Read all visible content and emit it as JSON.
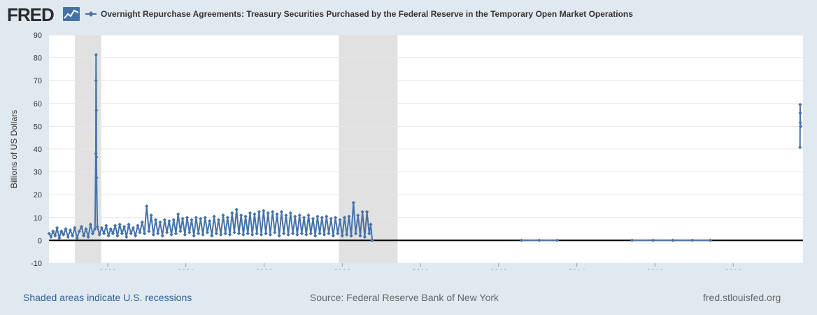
{
  "header": {
    "logo_text": "FRED",
    "logo_icon": "line-graph-icon",
    "legend_marker": "line-with-diamond-icon"
  },
  "footer": {
    "recessions_note": "Shaded areas indicate U.S. recessions",
    "source": "Source: Federal Reserve Bank of New York",
    "site": "fred.stlouisfed.org"
  },
  "colors": {
    "series": "#4572a7",
    "recession": "#e1e1e1",
    "grid": "#e6e6e6",
    "zero_line": "#000000",
    "background": "#e1e9f0",
    "plot_background": "#ffffff"
  },
  "chart_data": {
    "type": "line",
    "title": "Overnight Repurchase Agreements: Treasury Securities Purchased by the Federal Reserve in the Temporary Open Market Operations",
    "xlabel": "",
    "ylabel": "Billions of US Dollars",
    "x_axis_type": "date",
    "xlim": [
      "2000-07-01",
      "2019-10-15"
    ],
    "ylim": [
      -10,
      90
    ],
    "xticks": [
      "2002",
      "2004",
      "2006",
      "2008",
      "2010",
      "2012",
      "2014",
      "2016",
      "2018"
    ],
    "yticks": [
      -10,
      0,
      10,
      20,
      30,
      40,
      50,
      60,
      70,
      80,
      90
    ],
    "grid": true,
    "legend_position": "top",
    "recessions": [
      {
        "start": "2001-03-01",
        "end": "2001-11-01"
      },
      {
        "start": "2007-12-01",
        "end": "2009-06-01"
      }
    ],
    "series": [
      {
        "name": "",
        "points": [
          [
            "2000-07-03",
            3.0
          ],
          [
            "2000-07-20",
            1.5
          ],
          [
            "2000-08-08",
            4.0
          ],
          [
            "2000-08-28",
            2.0
          ],
          [
            "2000-09-15",
            5.5
          ],
          [
            "2000-10-05",
            1.0
          ],
          [
            "2000-10-25",
            4.0
          ],
          [
            "2000-11-14",
            2.5
          ],
          [
            "2000-12-05",
            5.0
          ],
          [
            "2000-12-26",
            1.5
          ],
          [
            "2001-01-16",
            4.5
          ],
          [
            "2001-02-06",
            2.0
          ],
          [
            "2001-02-27",
            5.5
          ],
          [
            "2001-03-20",
            1.0
          ],
          [
            "2001-04-10",
            4.0
          ],
          [
            "2001-05-01",
            6.0
          ],
          [
            "2001-05-22",
            2.0
          ],
          [
            "2001-06-12",
            5.0
          ],
          [
            "2001-07-03",
            1.5
          ],
          [
            "2001-07-24",
            7.0
          ],
          [
            "2001-08-14",
            3.0
          ],
          [
            "2001-09-04",
            5.0
          ],
          [
            "2001-09-12",
            38.0
          ],
          [
            "2001-09-13",
            70.0
          ],
          [
            "2001-09-14",
            81.3
          ],
          [
            "2001-09-17",
            57.0
          ],
          [
            "2001-09-18",
            36.5
          ],
          [
            "2001-09-19",
            27.5
          ],
          [
            "2001-09-26",
            6.0
          ],
          [
            "2001-10-16",
            2.5
          ],
          [
            "2001-11-06",
            5.5
          ],
          [
            "2001-11-27",
            3.0
          ],
          [
            "2001-12-18",
            6.5
          ],
          [
            "2002-01-08",
            2.0
          ],
          [
            "2002-01-29",
            5.0
          ],
          [
            "2002-02-19",
            3.0
          ],
          [
            "2002-03-12",
            6.5
          ],
          [
            "2002-04-02",
            2.0
          ],
          [
            "2002-04-23",
            7.0
          ],
          [
            "2002-05-14",
            3.0
          ],
          [
            "2002-06-04",
            6.0
          ],
          [
            "2002-06-25",
            1.5
          ],
          [
            "2002-07-16",
            7.0
          ],
          [
            "2002-08-06",
            3.0
          ],
          [
            "2002-08-27",
            5.5
          ],
          [
            "2002-09-17",
            2.0
          ],
          [
            "2002-10-08",
            6.5
          ],
          [
            "2002-10-29",
            3.5
          ],
          [
            "2002-11-19",
            8.0
          ],
          [
            "2002-12-10",
            3.0
          ],
          [
            "2002-12-31",
            15.0
          ],
          [
            "2003-01-21",
            4.0
          ],
          [
            "2003-02-11",
            11.0
          ],
          [
            "2003-03-04",
            2.5
          ],
          [
            "2003-03-25",
            9.0
          ],
          [
            "2003-04-15",
            3.0
          ],
          [
            "2003-05-06",
            8.0
          ],
          [
            "2003-05-27",
            2.0
          ],
          [
            "2003-06-17",
            9.0
          ],
          [
            "2003-07-08",
            3.5
          ],
          [
            "2003-07-29",
            8.5
          ],
          [
            "2003-08-19",
            2.5
          ],
          [
            "2003-09-09",
            9.0
          ],
          [
            "2003-09-30",
            3.0
          ],
          [
            "2003-10-21",
            11.5
          ],
          [
            "2003-11-11",
            4.0
          ],
          [
            "2003-12-02",
            9.5
          ],
          [
            "2003-12-23",
            2.5
          ],
          [
            "2004-01-13",
            10.0
          ],
          [
            "2004-02-03",
            3.5
          ],
          [
            "2004-02-24",
            9.0
          ],
          [
            "2004-03-16",
            2.0
          ],
          [
            "2004-04-06",
            10.0
          ],
          [
            "2004-04-27",
            3.0
          ],
          [
            "2004-05-18",
            9.5
          ],
          [
            "2004-06-08",
            2.5
          ],
          [
            "2004-06-29",
            10.0
          ],
          [
            "2004-07-20",
            3.5
          ],
          [
            "2004-08-10",
            8.5
          ],
          [
            "2004-08-31",
            2.0
          ],
          [
            "2004-09-21",
            10.5
          ],
          [
            "2004-10-12",
            3.0
          ],
          [
            "2004-11-02",
            9.0
          ],
          [
            "2004-11-23",
            2.5
          ],
          [
            "2004-12-14",
            11.0
          ],
          [
            "2005-01-04",
            3.0
          ],
          [
            "2005-01-25",
            10.0
          ],
          [
            "2005-02-15",
            2.5
          ],
          [
            "2005-03-08",
            12.0
          ],
          [
            "2005-03-29",
            3.5
          ],
          [
            "2005-04-19",
            13.5
          ],
          [
            "2005-05-10",
            3.0
          ],
          [
            "2005-05-31",
            11.0
          ],
          [
            "2005-06-21",
            2.5
          ],
          [
            "2005-07-12",
            10.5
          ],
          [
            "2005-08-02",
            3.0
          ],
          [
            "2005-08-23",
            12.0
          ],
          [
            "2005-09-13",
            2.5
          ],
          [
            "2005-10-04",
            11.5
          ],
          [
            "2005-10-25",
            3.0
          ],
          [
            "2005-11-15",
            12.5
          ],
          [
            "2005-12-06",
            2.5
          ],
          [
            "2005-12-27",
            13.0
          ],
          [
            "2006-01-17",
            3.0
          ],
          [
            "2006-02-07",
            12.0
          ],
          [
            "2006-02-28",
            2.5
          ],
          [
            "2006-03-21",
            12.5
          ],
          [
            "2006-04-11",
            3.5
          ],
          [
            "2006-05-02",
            11.5
          ],
          [
            "2006-05-23",
            2.0
          ],
          [
            "2006-06-13",
            12.5
          ],
          [
            "2006-07-04",
            3.0
          ],
          [
            "2006-07-25",
            11.0
          ],
          [
            "2006-08-15",
            2.5
          ],
          [
            "2006-09-05",
            12.0
          ],
          [
            "2006-09-26",
            3.0
          ],
          [
            "2006-10-17",
            10.5
          ],
          [
            "2006-11-07",
            2.5
          ],
          [
            "2006-11-28",
            11.0
          ],
          [
            "2006-12-19",
            3.0
          ],
          [
            "2007-01-09",
            10.0
          ],
          [
            "2007-01-30",
            2.5
          ],
          [
            "2007-02-20",
            11.0
          ],
          [
            "2007-03-13",
            3.0
          ],
          [
            "2007-04-03",
            9.5
          ],
          [
            "2007-04-24",
            2.0
          ],
          [
            "2007-05-15",
            10.5
          ],
          [
            "2007-06-05",
            3.0
          ],
          [
            "2007-06-26",
            10.0
          ],
          [
            "2007-07-17",
            2.5
          ],
          [
            "2007-08-07",
            10.5
          ],
          [
            "2007-08-28",
            3.0
          ],
          [
            "2007-09-18",
            9.5
          ],
          [
            "2007-10-09",
            2.0
          ],
          [
            "2007-10-30",
            10.0
          ],
          [
            "2007-11-20",
            3.0
          ],
          [
            "2007-12-11",
            9.0
          ],
          [
            "2008-01-01",
            2.0
          ],
          [
            "2008-01-22",
            10.0
          ],
          [
            "2008-02-12",
            2.5
          ],
          [
            "2008-03-04",
            10.5
          ],
          [
            "2008-03-25",
            2.0
          ],
          [
            "2008-04-15",
            16.5
          ],
          [
            "2008-05-06",
            3.0
          ],
          [
            "2008-05-27",
            11.0
          ],
          [
            "2008-06-17",
            2.0
          ],
          [
            "2008-07-08",
            12.5
          ],
          [
            "2008-07-29",
            1.5
          ],
          [
            "2008-08-19",
            12.5
          ],
          [
            "2008-09-09",
            3.0
          ],
          [
            "2008-09-23",
            7.0
          ],
          [
            "2008-10-07",
            0.0
          ],
          [
            "2012-08-01",
            0.0
          ],
          [
            "2013-01-15",
            0.0
          ],
          [
            "2013-07-01",
            0.0
          ],
          [
            "2015-06-01",
            0.0
          ],
          [
            "2015-12-15",
            0.0
          ],
          [
            "2016-06-15",
            0.0
          ],
          [
            "2016-12-15",
            0.0
          ],
          [
            "2017-06-01",
            0.0
          ],
          [
            "2019-09-17",
            40.8
          ],
          [
            "2019-09-18",
            59.5
          ],
          [
            "2019-09-19",
            55.8
          ],
          [
            "2019-09-20",
            51.6
          ],
          [
            "2019-09-23",
            49.9
          ]
        ]
      }
    ]
  }
}
